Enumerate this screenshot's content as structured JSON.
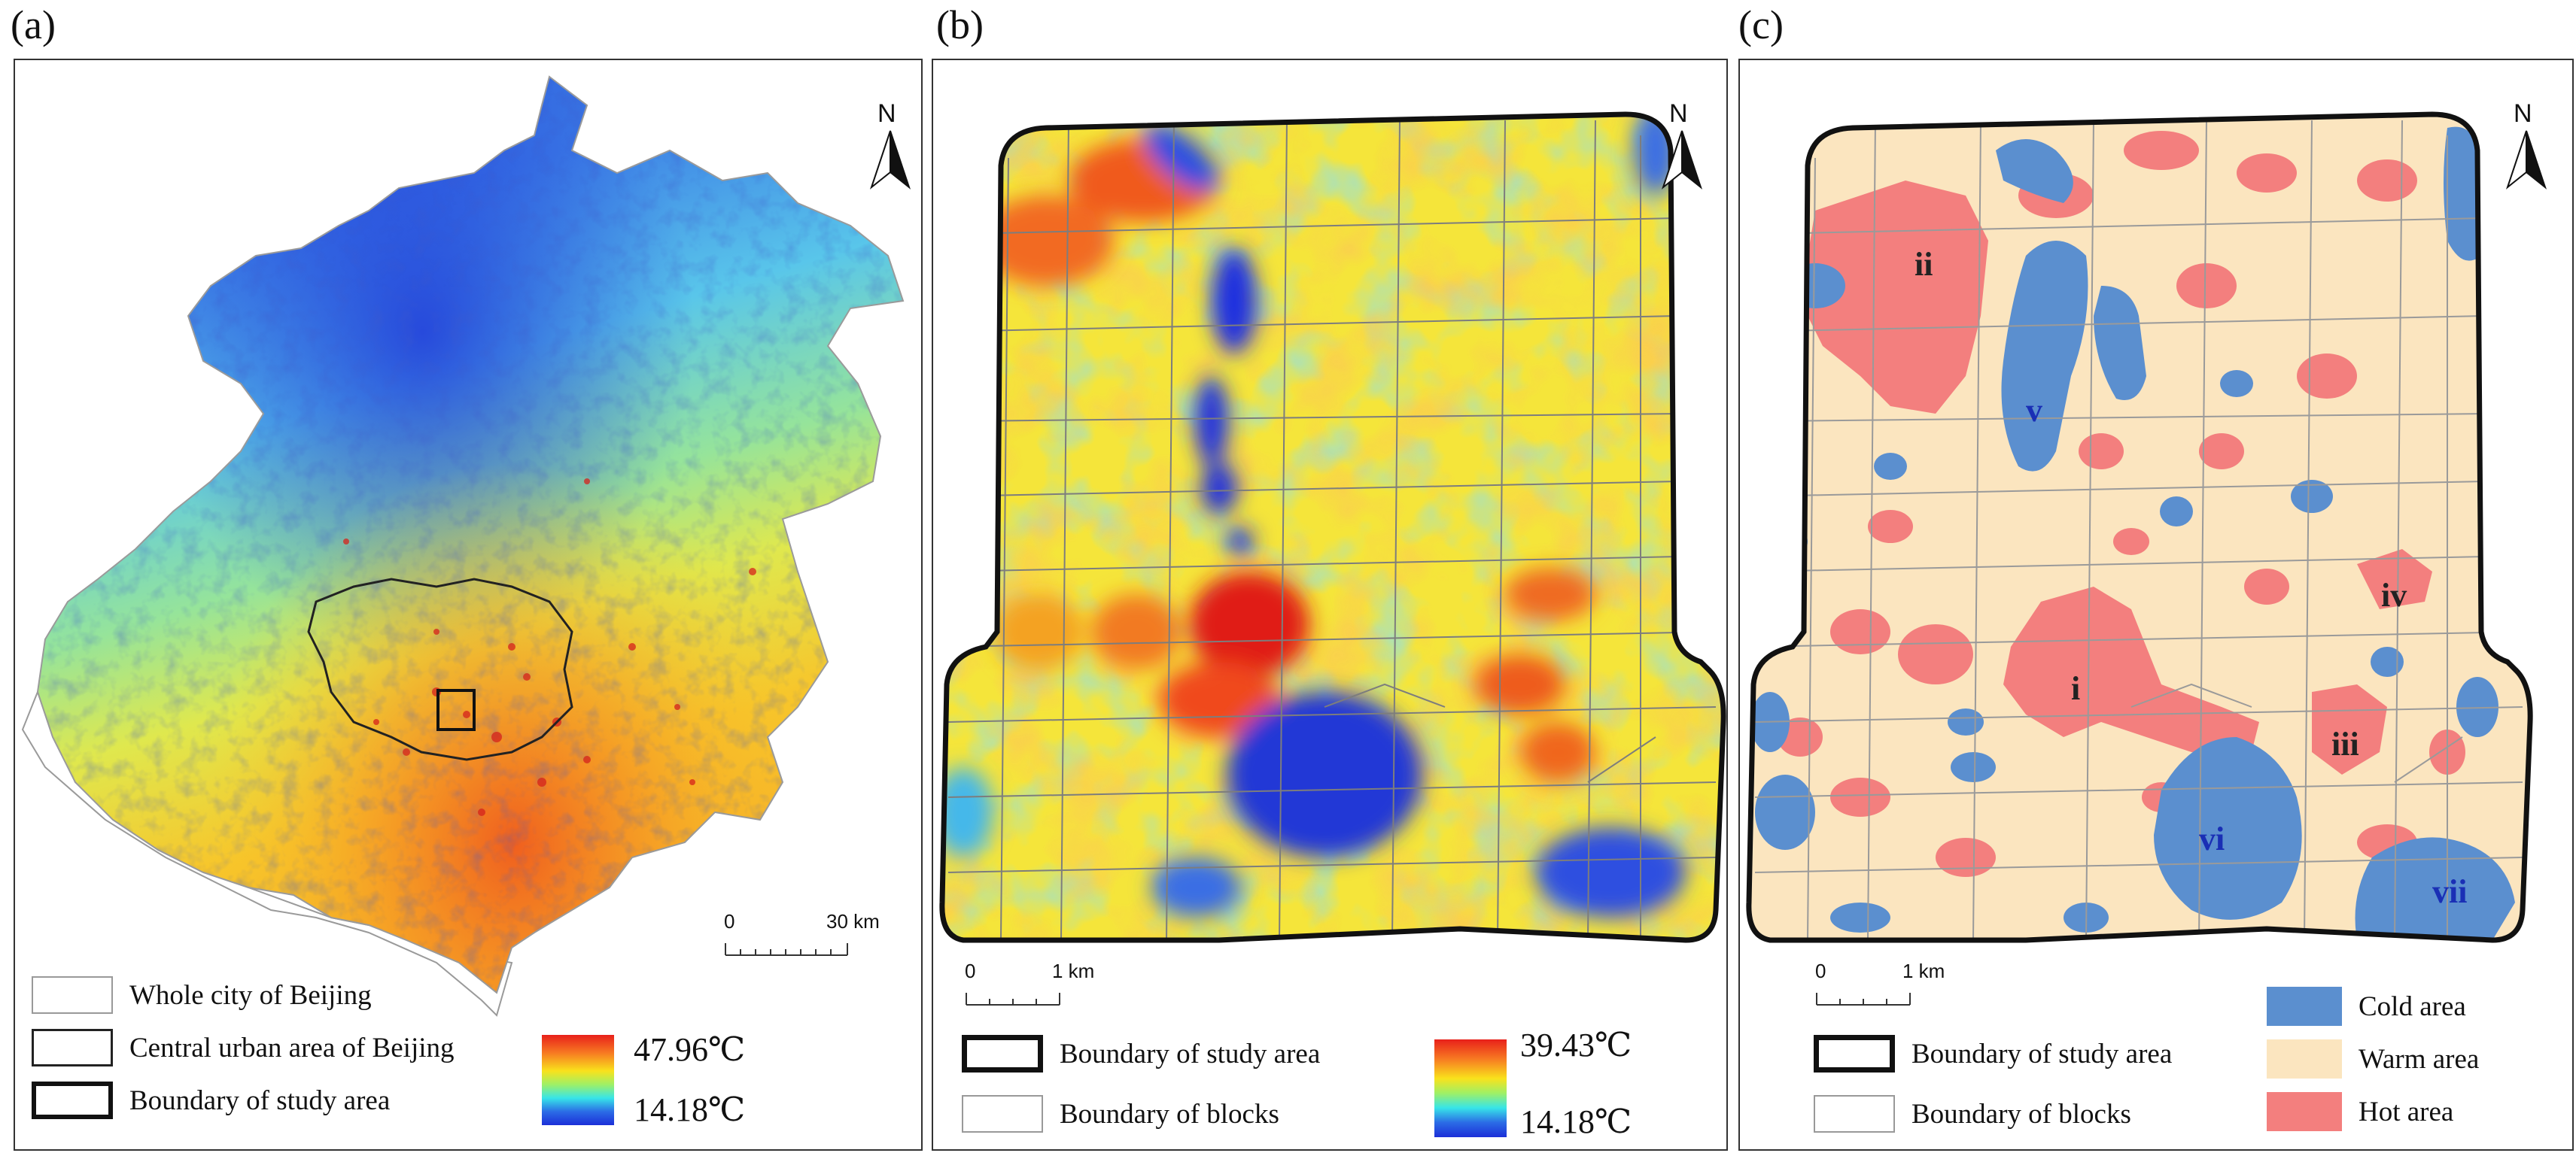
{
  "panels": {
    "a": {
      "label": "(a)",
      "north": "N",
      "scale": {
        "start": "0",
        "end": "30 km"
      },
      "legend": {
        "whole_city": "Whole city of Beijing",
        "central_urban": "Central urban area of Beijing",
        "study_boundary": "Boundary of study area",
        "max": "47.96℃",
        "min": "14.18℃"
      }
    },
    "b": {
      "label": "(b)",
      "north": "N",
      "scale": {
        "start": "0",
        "end": "1 km"
      },
      "legend": {
        "study_boundary": "Boundary of study area",
        "blocks": "Boundary of blocks",
        "max": "39.43℃",
        "min": "14.18℃"
      }
    },
    "c": {
      "label": "(c)",
      "north": "N",
      "scale": {
        "start": "0",
        "end": "1 km"
      },
      "legend": {
        "study_boundary": "Boundary of study area",
        "blocks": "Boundary of blocks",
        "cold": "Cold area",
        "warm": "Warm area",
        "hot": "Hot area"
      },
      "region_labels": {
        "i": "i",
        "ii": "ii",
        "iii": "iii",
        "iv": "iv",
        "v": "v",
        "vi": "vi",
        "vii": "vii"
      }
    }
  },
  "colors": {
    "cold": "#5b8fcf",
    "warm": "#fbe5bf",
    "hot": "#f37f7e",
    "region_label_dark": "#222222",
    "region_label_blue": "#1a2fb5"
  }
}
